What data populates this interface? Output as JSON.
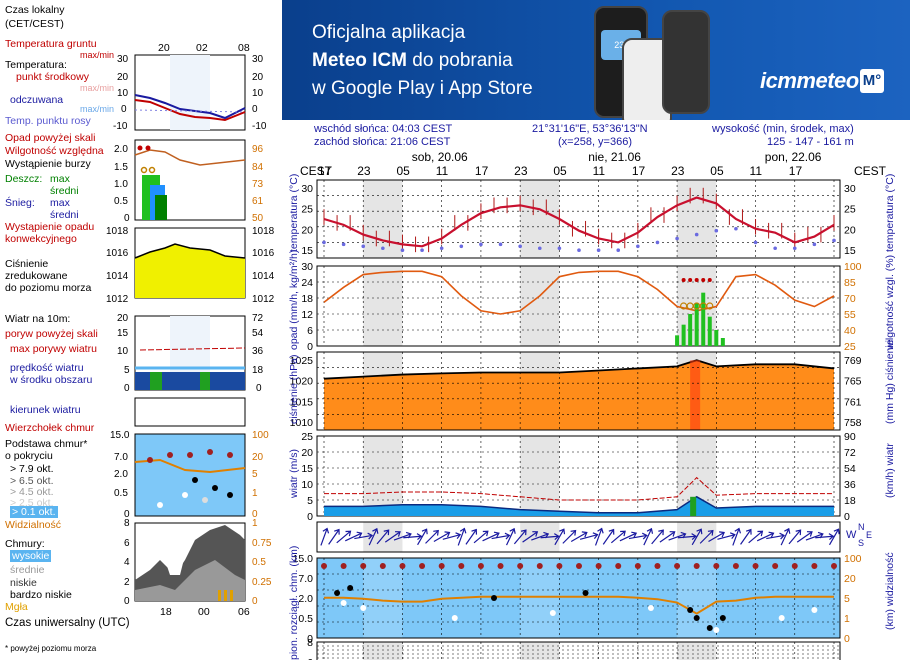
{
  "legend": {
    "local_time": "Czas lokalny",
    "local_time_zone": "(CET/CEST)",
    "local_hours": [
      "20",
      "02",
      "08"
    ],
    "soil_temp": "Temperatura gruntu",
    "soil_temp_maxmin": "max/min",
    "temperature": "Temperatura:",
    "temp_center": "punkt środkowy",
    "temp_max_min_1": "max/min",
    "feels_like": "odczuwana",
    "feels_max_min": "max/min",
    "dew_point": "Temp. punktu rosy",
    "temp_ticks_left": [
      "30",
      "20",
      "10",
      "0",
      "-10"
    ],
    "temp_ticks_right": [
      "30",
      "20",
      "10",
      "0",
      "-10"
    ],
    "precip_over": "Opad powyżej skali",
    "humidity": "Wilgotność względna",
    "storm": "Wystąpienie burzy",
    "rain": "Deszcz:",
    "rain_max": "max",
    "rain_mean": "średni",
    "snow": "Śnieg:",
    "snow_max": "max",
    "snow_mean": "średni",
    "precip_occurrence": "Wystąpienie opadu",
    "convective": "konwekcyjnego",
    "precip_ticks_left": [
      "2.0",
      "1.5",
      "1.0",
      "0.5",
      "0"
    ],
    "precip_ticks_right": [
      "96",
      "84",
      "73",
      "61",
      "50"
    ],
    "pressure_title_1": "Ciśnienie",
    "pressure_title_2": "zredukowane",
    "pressure_title_3": "do poziomu morza",
    "pressure_ticks": [
      "1018",
      "1016",
      "1014",
      "1012"
    ],
    "wind_title": "Wiatr na 10m:",
    "gust_over": "poryw powyżej skali",
    "gust_max": "max porywy wiatru",
    "wind_speed": "prędkość wiatru",
    "wind_area": "w środku obszaru",
    "wind_ticks_left": [
      "20",
      "15",
      "10",
      "5",
      "0"
    ],
    "wind_ticks_right": [
      "72",
      "54",
      "36",
      "18",
      "0"
    ],
    "wind_dir": "kierunek wiatru",
    "cloud_top": "Wierzchołek chmur",
    "cloud_base": "Podstawa chmur*",
    "cloud_cover": "o pokryciu",
    "okt_1": "> 7.9 okt.",
    "okt_2": "> 6.5 okt.",
    "okt_3": "> 4.5 okt.",
    "okt_4": "> 2.5 okt.",
    "okt_5": "> 0.1 okt.",
    "cloud_ticks_left": [
      "15.0",
      "7.0",
      "2.0",
      "0.5",
      "0"
    ],
    "cloud_ticks_right": [
      "100",
      "20",
      "5",
      "1",
      "0"
    ],
    "visibility": "Widzialność",
    "clouds": "Chmury:",
    "high": "wysokie",
    "medium": "średnie",
    "low": "niskie",
    "very_low": "bardzo niskie",
    "fog": "Mgła",
    "clouds_ticks_left": [
      "8",
      "6",
      "4",
      "2",
      "0"
    ],
    "clouds_ticks_right": [
      "1",
      "0.75",
      "0.5",
      "0.25",
      "0"
    ],
    "utc_hours": [
      "18",
      "00",
      "06"
    ],
    "utc": "Czas uniwersalny (UTC)",
    "footnote": "* powyżej poziomu morza"
  },
  "banner": {
    "line1": "Oficjalna aplikacja",
    "line2_bold": "Meteo ICM",
    "line2_rest": " do pobrania",
    "line3": "w Google Play i App Store",
    "logo": "icmmeteo",
    "logo_badge": "M°",
    "phone_temp": "23°"
  },
  "info": {
    "sunrise": "wschód słońca: 04:03 CEST",
    "sunset": "zachód słońca: 21:06 CEST",
    "coords": "21°31'16\"E, 53°36'13\"N",
    "grid": "(x=258,  y=366)",
    "elevation_label": "wysokość (min, środek, max)",
    "elevation": "125 - 147 - 161 m"
  },
  "timeline": {
    "cest_left": "CEST",
    "cest_right": "CEST",
    "days": [
      "sob, 20.06",
      "nie, 21.06",
      "pon, 22.06"
    ],
    "hours": [
      "17",
      "23",
      "05",
      "11",
      "17",
      "23",
      "05",
      "11",
      "17",
      "23",
      "05",
      "11",
      "17"
    ]
  },
  "panels": {
    "temp": {
      "label_left": "temperatura",
      "unit_left": "(°C)",
      "label_right": "temperatura",
      "unit_right": "(°C)",
      "ticks_left": [
        "30",
        "25",
        "20",
        "15"
      ],
      "ticks_right": [
        "30",
        "25",
        "20",
        "15"
      ]
    },
    "precip": {
      "label_left": "opad",
      "unit_left": "(mm/h, kg/m²/h)",
      "label_right": "wilgotność wzgl.",
      "unit_right": "(%)",
      "ticks_left": [
        "30",
        "24",
        "18",
        "12",
        "6",
        "0"
      ],
      "ticks_right": [
        "100",
        "85",
        "70",
        "55",
        "40",
        "25"
      ]
    },
    "pressure": {
      "label_left": "ciśnienie",
      "unit_left": "(hPa)",
      "label_right": "ciśnienie",
      "unit_right": "(mm Hg)",
      "ticks_left": [
        "1025",
        "1020",
        "1015",
        "1010"
      ],
      "ticks_right": [
        "769",
        "765",
        "761",
        "758"
      ]
    },
    "wind": {
      "label_left": "wiatr",
      "unit_left": "(m/s)",
      "label_right": "wiatr",
      "unit_right": "(km/h)",
      "ticks_left": [
        "25",
        "20",
        "15",
        "10",
        "5",
        "0"
      ],
      "ticks_right": [
        "90",
        "72",
        "54",
        "36",
        "18",
        "0"
      ]
    },
    "dir": {
      "label": "W",
      "label2": "N",
      "label3": "S",
      "label4": "E"
    },
    "cloud": {
      "label_left": "pion. rozciągł. chm.",
      "unit_left": "(km)",
      "label_right": "widzialność",
      "unit_right": "(km)",
      "ticks_left": [
        "15.0",
        "7.0",
        "2.0",
        "0.5",
        "0"
      ],
      "ticks_right": [
        "100",
        "20",
        "5",
        "1",
        "0"
      ]
    },
    "clouds": {
      "ticks_left": [
        "8",
        "6"
      ]
    }
  },
  "chart_data": [
    {
      "type": "line",
      "title": "temperatura",
      "ylabel": "(°C)",
      "ylim": [
        12,
        32
      ],
      "x_hours": [
        0,
        3,
        6,
        9,
        12,
        15,
        18,
        21,
        24,
        27,
        30,
        33,
        36,
        39,
        42,
        45,
        48,
        51,
        54,
        57,
        60,
        63,
        66,
        69,
        72,
        75,
        78
      ],
      "series": [
        {
          "name": "punkt środkowy",
          "values": [
            22,
            20.5,
            18,
            16.5,
            15.5,
            15,
            17,
            20.5,
            23.5,
            25,
            25.5,
            24.5,
            22,
            19,
            17,
            16,
            18.5,
            22.5,
            25.5,
            27.5,
            26,
            22,
            19.5,
            18.5,
            16,
            17.5,
            20.5
          ]
        },
        {
          "name": "Temp. punktu rosy",
          "values": [
            16,
            15.5,
            15,
            14.5,
            14,
            14,
            14.5,
            15,
            15.5,
            15.5,
            15,
            14.5,
            14.5,
            14,
            14,
            14,
            15,
            16,
            17,
            18,
            19,
            19.5,
            16,
            14.5,
            14.5,
            15.5,
            16.5
          ]
        }
      ]
    },
    {
      "type": "line",
      "title": "opad / wilgotność",
      "ylim": [
        0,
        30
      ],
      "x_hours": [
        0,
        3,
        6,
        9,
        12,
        15,
        18,
        21,
        24,
        27,
        30,
        33,
        36,
        39,
        42,
        45,
        48,
        51,
        54,
        57,
        60,
        63,
        66,
        69,
        72,
        75,
        78
      ],
      "series": [
        {
          "name": "Wilgotność względna",
          "values": [
            66,
            80,
            92,
            94,
            95,
            95,
            90,
            72,
            58,
            55,
            58,
            72,
            90,
            94,
            95,
            95,
            90,
            78,
            62,
            58,
            62,
            90,
            92,
            82,
            68,
            62,
            72
          ]
        }
      ]
    },
    {
      "type": "area",
      "title": "ciśnienie",
      "ylabel": "(hPa)",
      "ylim": [
        1008,
        1027
      ],
      "x_hours": [
        0,
        6,
        12,
        18,
        24,
        30,
        36,
        42,
        48,
        54,
        57,
        60,
        66,
        72,
        78
      ],
      "series": [
        {
          "name": "ciśnienie",
          "values": [
            1020.5,
            1021,
            1021.5,
            1021.8,
            1022,
            1022,
            1022,
            1022.5,
            1023,
            1023.5,
            1025,
            1023.5,
            1024,
            1024,
            1023
          ]
        }
      ]
    },
    {
      "type": "area",
      "title": "wiatr",
      "ylabel": "(m/s)",
      "ylim": [
        0,
        25
      ],
      "x_hours": [
        0,
        6,
        12,
        18,
        24,
        30,
        36,
        42,
        48,
        54,
        57,
        60,
        66,
        72,
        78
      ],
      "series": [
        {
          "name": "prędkość wiatru",
          "values": [
            3,
            3,
            3.5,
            3.5,
            3,
            2,
            1.5,
            1,
            1,
            2,
            6,
            2.5,
            3,
            3,
            3
          ]
        },
        {
          "name": "max porywy wiatru",
          "values": [
            7,
            7,
            7.5,
            7.5,
            7,
            6,
            5,
            5,
            5,
            6,
            12,
            6.5,
            7,
            7,
            7
          ]
        }
      ]
    }
  ]
}
